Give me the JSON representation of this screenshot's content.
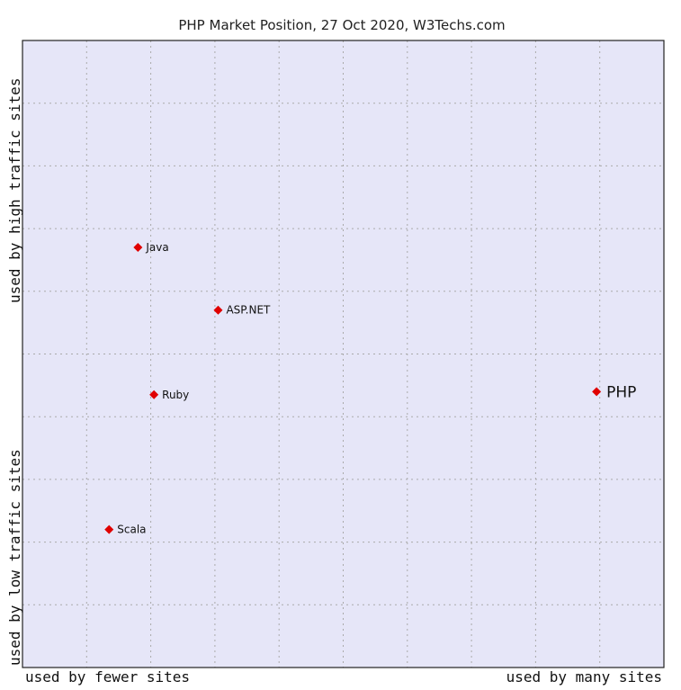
{
  "chart_data": {
    "type": "scatter",
    "title": "PHP Market Position, 27 Oct 2020, W3Techs.com",
    "xlabel_left": "used by fewer sites",
    "xlabel_right": "used by many sites",
    "ylabel_bottom": "used by low traffic sites",
    "ylabel_top": "used by high traffic sites",
    "xlim": [
      0,
      10
    ],
    "ylim": [
      0,
      10
    ],
    "grid": true,
    "colors": {
      "plot_bg": "#e6e6f8",
      "grid": "#aaaaaa",
      "point": "#e00000",
      "border": "#222222"
    },
    "points": [
      {
        "label": "Java",
        "x": 1.8,
        "y": 6.7,
        "highlight": false
      },
      {
        "label": "ASP.NET",
        "x": 3.05,
        "y": 5.7,
        "highlight": false
      },
      {
        "label": "Ruby",
        "x": 2.05,
        "y": 4.35,
        "highlight": false
      },
      {
        "label": "Scala",
        "x": 1.35,
        "y": 2.2,
        "highlight": false
      },
      {
        "label": "PHP",
        "x": 8.95,
        "y": 4.4,
        "highlight": true
      }
    ]
  }
}
